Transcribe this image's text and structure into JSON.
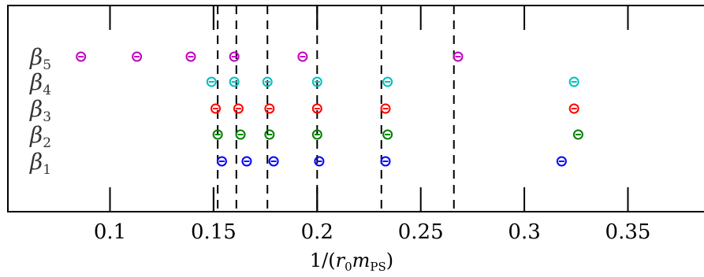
{
  "chart_data": {
    "type": "scatter",
    "xlabel": "1/(r0 mPS)",
    "xlabel_parts": {
      "prefix": "1/(",
      "r": "r",
      "r_sub": "0",
      "m": "m",
      "m_sub": "PS",
      "suffix": ")"
    },
    "xlim": [
      0.05,
      0.38
    ],
    "xticks": [
      0.1,
      0.15,
      0.2,
      0.25,
      0.3,
      0.35
    ],
    "xtick_labels": [
      "0.1",
      "0.15",
      "0.2",
      "0.25",
      "0.3",
      "0.35"
    ],
    "extra_top_bottom_ticks": [
      0.15,
      0.2
    ],
    "grid": false,
    "legend": "none",
    "reference_lines": [
      0.152,
      0.161,
      0.176,
      0.2,
      0.231,
      0.266
    ],
    "series": [
      {
        "name": "β5",
        "label_base": "β",
        "label_sub": "5",
        "color": "#bf00bf",
        "x": [
          0.086,
          0.113,
          0.139,
          0.16,
          0.193,
          0.268
        ]
      },
      {
        "name": "β4",
        "label_base": "β",
        "label_sub": "4",
        "color": "#00bfbf",
        "x": [
          0.149,
          0.16,
          0.176,
          0.2,
          0.234,
          0.324
        ]
      },
      {
        "name": "β3",
        "label_base": "β",
        "label_sub": "3",
        "color": "#ff0000",
        "x": [
          0.151,
          0.162,
          0.177,
          0.2,
          0.233,
          0.324
        ]
      },
      {
        "name": "β2",
        "label_base": "β",
        "label_sub": "2",
        "color": "#008000",
        "x": [
          0.152,
          0.163,
          0.177,
          0.2,
          0.234,
          0.326
        ]
      },
      {
        "name": "β1",
        "label_base": "β",
        "label_sub": "1",
        "color": "#0000ff",
        "x": [
          0.154,
          0.166,
          0.179,
          0.201,
          0.233,
          0.318
        ]
      }
    ]
  }
}
